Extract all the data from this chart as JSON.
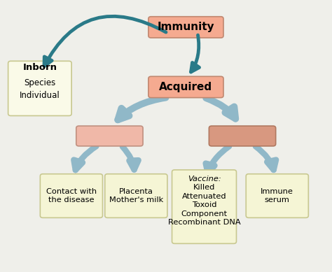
{
  "background_color": "#efefea",
  "border_color": "#9aaf8a",
  "title": "Immunity",
  "title_box_color": "#f5aa90",
  "title_box_edge": "#c08870",
  "inborn_label": "Inborn",
  "inborn_box_color": "#fafae8",
  "inborn_box_edge": "#c8c890",
  "acquired_label": "Acquired",
  "acquired_box_color": "#f5aa90",
  "acquired_box_edge": "#c08870",
  "level2_left_color": "#f0b8a8",
  "level2_right_color": "#d89880",
  "level2_left_edge": "#c09080",
  "level2_right_edge": "#b07860",
  "leaf_box_color": "#f5f5d5",
  "leaf_box_edge": "#c8c890",
  "teal_arrow_color": "#2a7a88",
  "light_blue_arrow_color": "#90b8c8",
  "fig_width": 4.74,
  "fig_height": 3.89,
  "dpi": 100
}
